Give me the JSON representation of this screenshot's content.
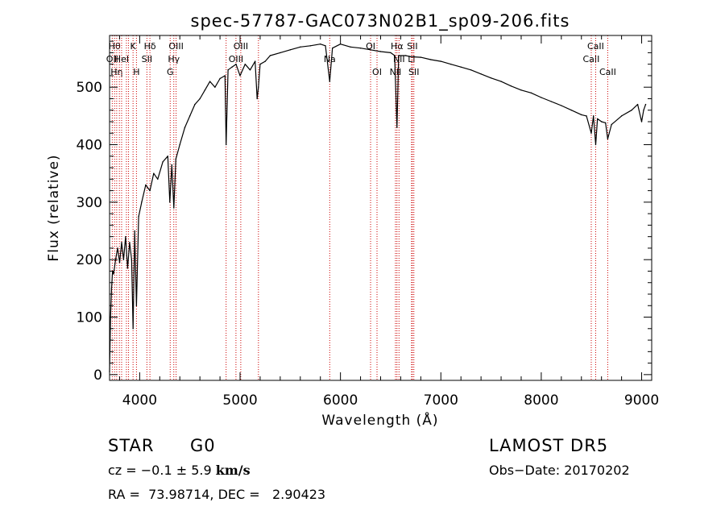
{
  "chart_data": {
    "type": "line",
    "title": "spec-57787-GAC073N02B1_sp09-206.fits",
    "xlabel": "Wavelength (Å)",
    "ylabel": "Flux (relative)",
    "xlim": [
      3700,
      9100
    ],
    "ylim": [
      -10,
      590
    ],
    "xticks": [
      4000,
      5000,
      6000,
      7000,
      8000,
      9000
    ],
    "yticks": [
      0,
      100,
      200,
      300,
      400,
      500
    ],
    "grid": false,
    "line_color": "#000000",
    "marker_color": "#cc0000",
    "series": [
      {
        "x": [
          3700,
          3710,
          3720,
          3730,
          3740,
          3760,
          3780,
          3800,
          3820,
          3840,
          3860,
          3880,
          3900,
          3920,
          3934,
          3950,
          3968,
          3990,
          4020,
          4060,
          4102,
          4140,
          4180,
          4230,
          4280,
          4300,
          4320,
          4340,
          4360,
          4400,
          4450,
          4500,
          4550,
          4600,
          4650,
          4700,
          4750,
          4800,
          4850,
          4861,
          4880,
          4920,
          4960,
          5000,
          5050,
          5100,
          5150,
          5170,
          5183,
          5200,
          5250,
          5300,
          5400,
          5500,
          5600,
          5700,
          5800,
          5850,
          5893,
          5920,
          6000,
          6100,
          6200,
          6300,
          6400,
          6500,
          6540,
          6563,
          6580,
          6650,
          6700,
          6800,
          6900,
          7000,
          7100,
          7200,
          7300,
          7400,
          7500,
          7600,
          7700,
          7800,
          7900,
          8000,
          8100,
          8200,
          8300,
          8400,
          8450,
          8498,
          8520,
          8542,
          8560,
          8600,
          8640,
          8662,
          8700,
          8800,
          8900,
          8960,
          9000,
          9020,
          9040
        ],
        "y": [
          5,
          100,
          150,
          180,
          175,
          200,
          220,
          195,
          230,
          200,
          240,
          185,
          230,
          200,
          80,
          250,
          120,
          275,
          300,
          330,
          320,
          350,
          340,
          370,
          380,
          300,
          365,
          290,
          375,
          400,
          430,
          450,
          470,
          480,
          495,
          510,
          500,
          515,
          520,
          400,
          530,
          535,
          540,
          520,
          540,
          530,
          545,
          480,
          500,
          540,
          545,
          555,
          560,
          565,
          570,
          572,
          575,
          572,
          510,
          568,
          575,
          570,
          568,
          565,
          562,
          560,
          555,
          430,
          555,
          555,
          553,
          552,
          548,
          545,
          540,
          535,
          530,
          523,
          516,
          510,
          502,
          495,
          490,
          482,
          475,
          468,
          460,
          452,
          450,
          420,
          450,
          400,
          445,
          440,
          438,
          410,
          435,
          450,
          460,
          470,
          440,
          460,
          470
        ]
      }
    ],
    "line_markers": [
      {
        "x": 3727,
        "label": "OII",
        "row": 1
      },
      {
        "x": 3750,
        "label": "Hθ",
        "row": 0
      },
      {
        "x": 3771,
        "label": "Hη",
        "row": 2
      },
      {
        "x": 3798,
        "label": "",
        "row": 0
      },
      {
        "x": 3820,
        "label": "HeI",
        "row": 1
      },
      {
        "x": 3868,
        "label": "",
        "row": 0
      },
      {
        "x": 3889,
        "label": "",
        "row": 0
      },
      {
        "x": 3934,
        "label": "K",
        "row": 0
      },
      {
        "x": 3968,
        "label": "H",
        "row": 2
      },
      {
        "x": 4072,
        "label": "SII",
        "row": 1
      },
      {
        "x": 4102,
        "label": "Hδ",
        "row": 0
      },
      {
        "x": 4304,
        "label": "G",
        "row": 2
      },
      {
        "x": 4340,
        "label": "Hγ",
        "row": 1
      },
      {
        "x": 4363,
        "label": "OIII",
        "row": 0
      },
      {
        "x": 4861,
        "label": "",
        "row": 0
      },
      {
        "x": 4959,
        "label": "OIII",
        "row": 1
      },
      {
        "x": 5007,
        "label": "OIII",
        "row": 0
      },
      {
        "x": 5183,
        "label": "",
        "row": 0
      },
      {
        "x": 5893,
        "label": "Na",
        "row": 1
      },
      {
        "x": 6300,
        "label": "OI",
        "row": 0
      },
      {
        "x": 6364,
        "label": "OI",
        "row": 2
      },
      {
        "x": 6548,
        "label": "NII",
        "row": 2
      },
      {
        "x": 6563,
        "label": "Hα",
        "row": 0
      },
      {
        "x": 6583,
        "label": "NII",
        "row": 1
      },
      {
        "x": 6708,
        "label": "Li",
        "row": 1
      },
      {
        "x": 6716,
        "label": "SII",
        "row": 0
      },
      {
        "x": 6731,
        "label": "SII",
        "row": 2
      },
      {
        "x": 8498,
        "label": "CaII",
        "row": 1
      },
      {
        "x": 8542,
        "label": "CaII",
        "row": 0
      },
      {
        "x": 8662,
        "label": "CaII",
        "row": 2
      }
    ]
  },
  "info": {
    "object_class": "STAR",
    "subclass": "G0",
    "cz_prefix": "cz = −0.1 ± 5.9 ",
    "cz_unit": "km/s",
    "coords": "RA =  73.98714, DEC =   2.90423",
    "survey": "LAMOST DR5",
    "obs_date": "Obs−Date: 20170202"
  }
}
